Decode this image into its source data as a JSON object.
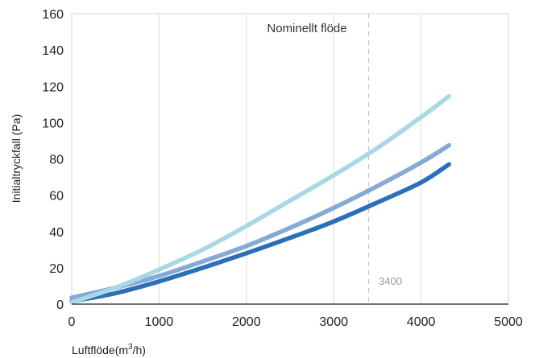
{
  "chart_data": {
    "type": "line",
    "title": "",
    "xlabel": "Luftflöde(m",
    "xlabel_sup": "3",
    "xlabel_tail": "/h)",
    "ylabel": "Initialtryckfall (Pa)",
    "xlim": [
      0,
      5000
    ],
    "ylim": [
      0,
      160
    ],
    "x_ticks": [
      0,
      1000,
      2000,
      3000,
      4000,
      5000
    ],
    "y_ticks": [
      0,
      20,
      40,
      60,
      80,
      100,
      120,
      140,
      160
    ],
    "x_tick_labels": [
      "0",
      "1000",
      "2000",
      "3000",
      "4000",
      "5000"
    ],
    "y_tick_labels": [
      "0",
      "20",
      "40",
      "60",
      "80",
      "100",
      "120",
      "140",
      "160"
    ],
    "grid": "vertical",
    "legend": "none",
    "series": [
      {
        "color": "#2a6fb8",
        "x": [
          0,
          500,
          1000,
          1500,
          2000,
          2500,
          3000,
          3500,
          4000,
          4320
        ],
        "values": [
          1.5,
          6,
          12.5,
          20,
          28,
          36.5,
          45.5,
          56,
          67,
          77
        ]
      },
      {
        "color": "#86a9d6",
        "x": [
          0,
          500,
          1000,
          1500,
          2000,
          2500,
          3000,
          3500,
          4000,
          4320
        ],
        "values": [
          3.5,
          9,
          15.5,
          23.5,
          32,
          42,
          53,
          65,
          78,
          87.5
        ]
      },
      {
        "color": "#a8d8e4",
        "x": [
          0,
          500,
          1000,
          1500,
          2000,
          2500,
          3000,
          3500,
          4000,
          4320
        ],
        "values": [
          1,
          9,
          19,
          30,
          43,
          57,
          71,
          86,
          103,
          114.5
        ]
      }
    ],
    "annotations": {
      "nominal_label": "Nominellt flöde",
      "nominal_x": 3400,
      "nominal_value_label": "3400"
    }
  }
}
